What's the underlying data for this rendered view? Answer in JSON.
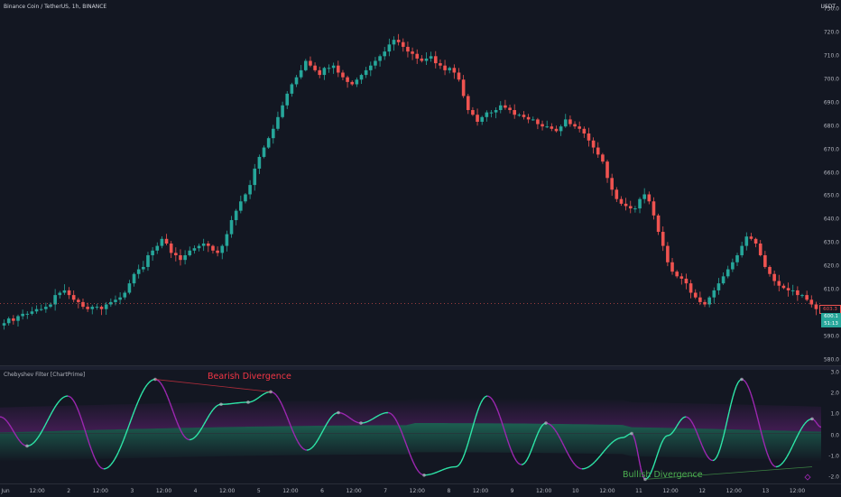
{
  "header": {
    "symbol_title": "Binance Coin / TetherUS, 1h, BINANCE",
    "currency": "USDT"
  },
  "indicator": {
    "title": "Chebyshev Filter [ChartPrime]",
    "bearish_label": "Bearish Divergence",
    "bullish_label": "Bullish Divergence"
  },
  "price_axis": [
    "730.0",
    "720.0",
    "710.0",
    "700.0",
    "690.0",
    "680.0",
    "670.0",
    "660.0",
    "650.0",
    "640.0",
    "630.0",
    "620.0",
    "610.0",
    "600.0",
    "590.0",
    "580.0"
  ],
  "osc_axis": [
    "3.0",
    "2.0",
    "1.0",
    "0.0",
    "-1.0",
    "-2.0"
  ],
  "price_tags": {
    "alert": "603.3",
    "last": "600.1",
    "countdown": "51:13"
  },
  "time_axis": [
    "Jun",
    "12:00",
    "2",
    "12:00",
    "3",
    "12:00",
    "4",
    "12:00",
    "5",
    "12:00",
    "6",
    "12:00",
    "7",
    "12:00",
    "8",
    "12:00",
    "9",
    "12:00",
    "10",
    "12:00",
    "11",
    "12:00",
    "12",
    "12:00",
    "13",
    "12:00"
  ],
  "colors": {
    "background": "#131722",
    "up": "#26a69a",
    "down": "#ef5350",
    "bearish": "#f23645",
    "bullish": "#4caf50",
    "osc_up": "#2ee6a8",
    "osc_down": "#9c27b0"
  },
  "chart_data": [
    {
      "type": "candlestick",
      "title": "Binance Coin / TetherUS, 1h, BINANCE",
      "ylim": [
        577,
        733
      ],
      "close": [
        595,
        597,
        596,
        598,
        599,
        599,
        600,
        601,
        601,
        602,
        603,
        607,
        608,
        609,
        607,
        605,
        604,
        602,
        601,
        602,
        602,
        601,
        603,
        604,
        605,
        606,
        608,
        612,
        616,
        618,
        619,
        624,
        626,
        628,
        631,
        629,
        625,
        624,
        622,
        624,
        626,
        627,
        628,
        629,
        628,
        626,
        625,
        628,
        633,
        639,
        643,
        647,
        650,
        654,
        661,
        666,
        670,
        674,
        678,
        683,
        688,
        693,
        697,
        700,
        703,
        707,
        705,
        703,
        701,
        704,
        704,
        705,
        702,
        700,
        698,
        697,
        699,
        701,
        703,
        705,
        707,
        709,
        711,
        714,
        716,
        715,
        713,
        711,
        710,
        708,
        707,
        708,
        709,
        706,
        705,
        703,
        704,
        702,
        699,
        692,
        686,
        684,
        681,
        683,
        685,
        685,
        686,
        688,
        687,
        686,
        684,
        684,
        683,
        682,
        682,
        680,
        679,
        679,
        678,
        677,
        679,
        682,
        680,
        679,
        678,
        676,
        673,
        670,
        667,
        664,
        657,
        652,
        648,
        646,
        645,
        644,
        644,
        648,
        650,
        647,
        641,
        634,
        628,
        621,
        617,
        615,
        614,
        612,
        608,
        606,
        604,
        603,
        606,
        609,
        612,
        615,
        618,
        621,
        624,
        628,
        632,
        631,
        629,
        624,
        619,
        616,
        613,
        611,
        610,
        609,
        609,
        607,
        607,
        605,
        603,
        601
      ]
    },
    {
      "type": "line",
      "title": "Chebyshev Filter [ChartPrime]",
      "ylim": [
        -2.4,
        3.1
      ],
      "note_labels": [
        "Bearish Divergence",
        "Bullish Divergence"
      ]
    }
  ]
}
